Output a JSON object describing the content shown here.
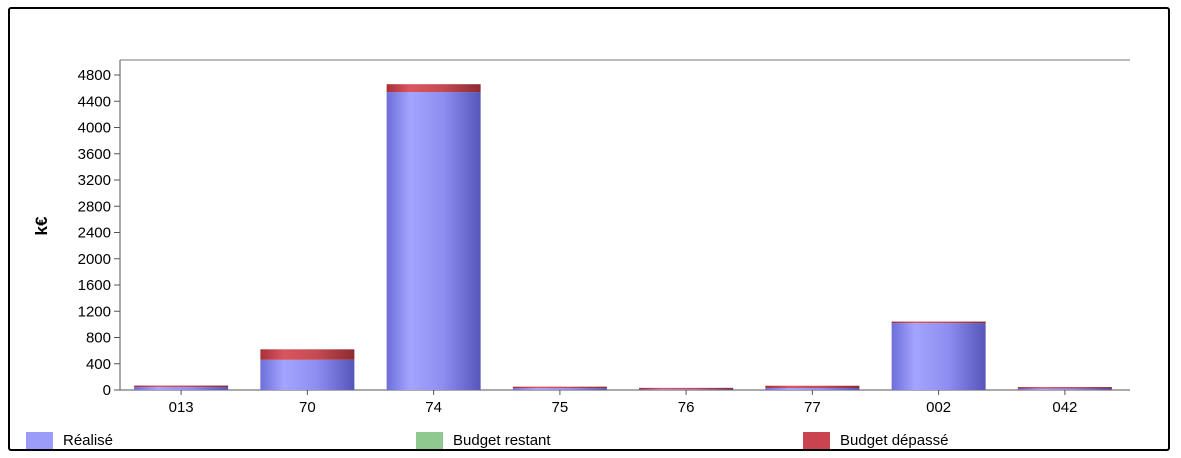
{
  "chart_data": {
    "type": "bar",
    "stacked": true,
    "ylabel": "k€",
    "xlabel": "",
    "title": "",
    "ylim": [
      0,
      4800
    ],
    "yticks": [
      0,
      400,
      800,
      1200,
      1600,
      2000,
      2400,
      2800,
      3200,
      3600,
      4000,
      4400,
      4800
    ],
    "categories": [
      "013",
      "70",
      "74",
      "75",
      "76",
      "77",
      "002",
      "042"
    ],
    "series": [
      {
        "name": "Réalisé",
        "color": "#9b9cf9",
        "values": [
          45,
          460,
          4540,
          28,
          10,
          30,
          1020,
          22
        ]
      },
      {
        "name": "Budget restant",
        "color": "#8fc98f",
        "values": [
          0,
          0,
          0,
          0,
          0,
          0,
          0,
          0
        ]
      },
      {
        "name": "Budget dépassé",
        "color": "#c9444e",
        "values": [
          15,
          160,
          120,
          8,
          5,
          35,
          20,
          8
        ]
      }
    ],
    "legend_position": "bottom",
    "grid": false
  }
}
